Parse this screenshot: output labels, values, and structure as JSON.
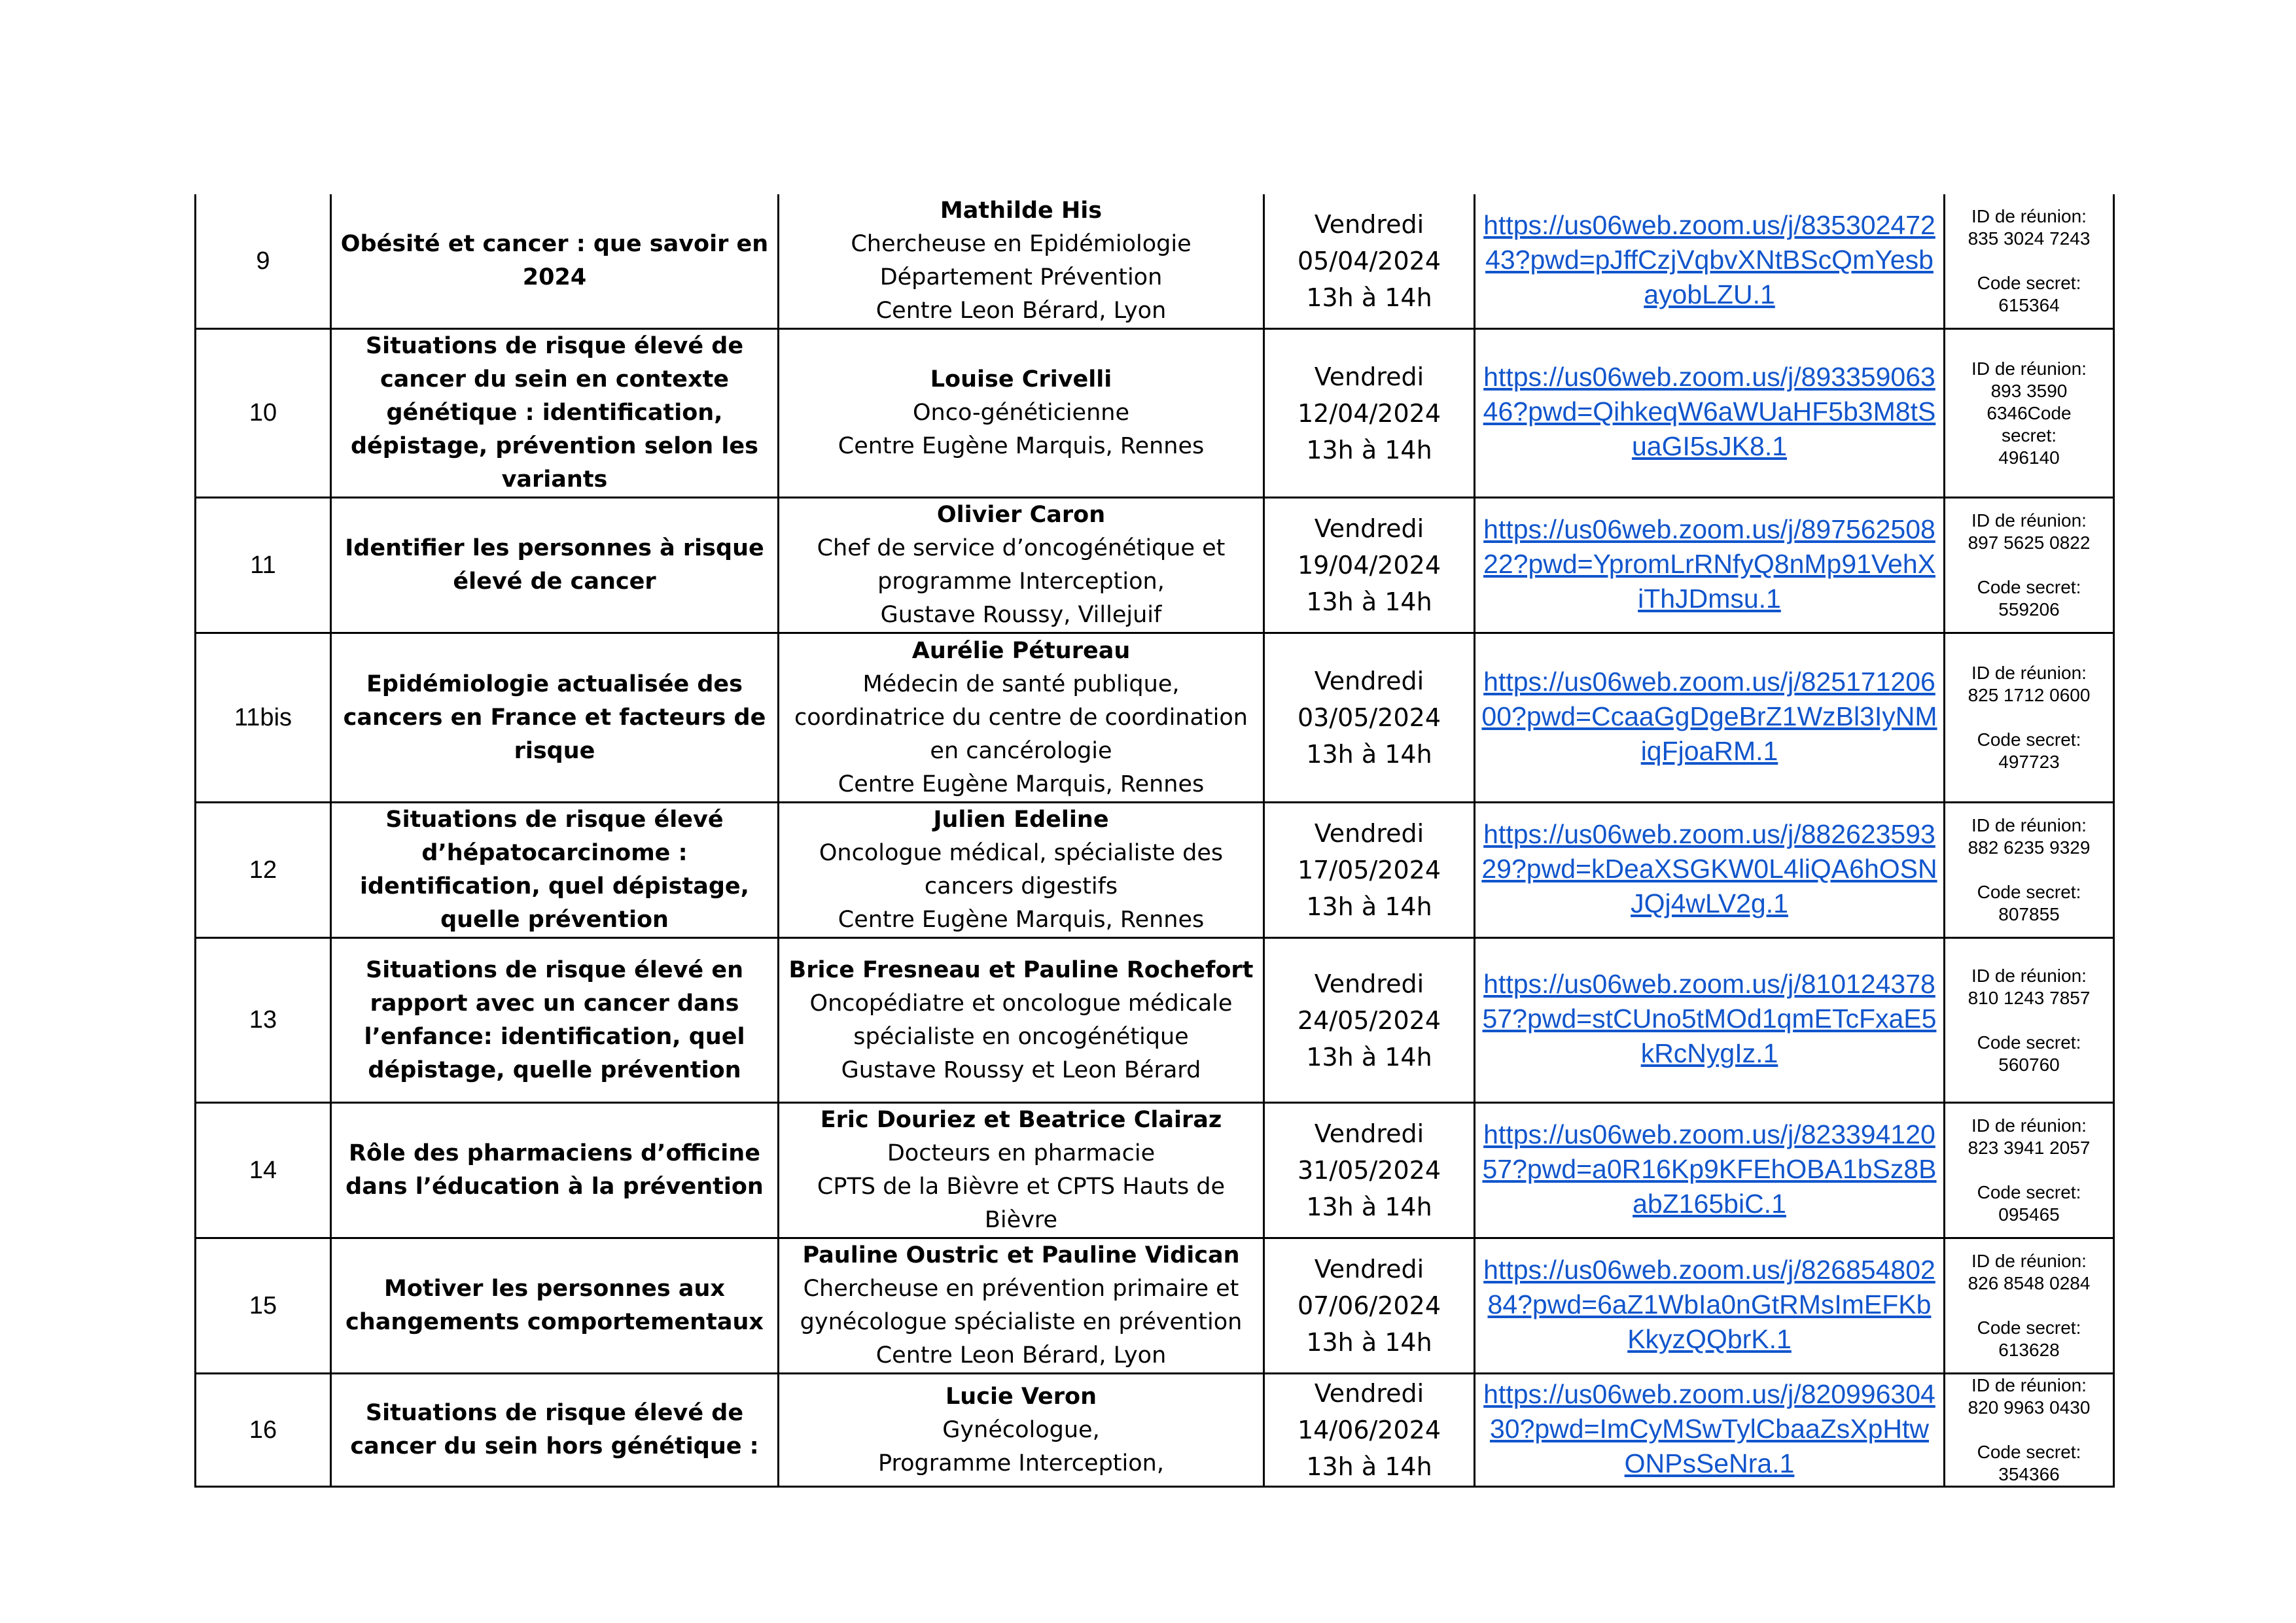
{
  "sessions": [
    {
      "num": "9",
      "title": "Obésité et cancer : que savoir en 2024",
      "speaker": "Mathilde His",
      "details": [
        "Chercheuse en Epidémiologie",
        "Département Prévention",
        "Centre Leon Bérard, Lyon"
      ],
      "day": "Vendredi",
      "date": "05/04/2024",
      "time": "13h à 14h",
      "link": "https://us06web.zoom.us/j/83530247243?pwd=pJffCzjVqbvXNtBScQmYesbayobLZU.1",
      "id_label": "ID de réunion:",
      "id": "835 3024 7243",
      "code_label": "Code secret:",
      "code": "615364"
    },
    {
      "num": "10",
      "title": "Situations de risque élevé de cancer du sein en contexte génétique : identification, dépistage, prévention selon les variants",
      "speaker": "Louise Crivelli",
      "details": [
        "Onco-généticienne",
        "Centre Eugène Marquis, Rennes"
      ],
      "day": "Vendredi",
      "date": "12/04/2024",
      "time": "13h à 14h",
      "link": "https://us06web.zoom.us/j/89335906346?pwd=QihkeqW6aWUaHF5b3M8tSuaGI5sJK8.1",
      "id_label": "ID de réunion:",
      "id": "893 3590 6346Code",
      "code_label": "secret:",
      "code": "496140"
    },
    {
      "num": "11",
      "title": "Identifier les personnes à risque élevé de cancer",
      "speaker": "Olivier Caron",
      "details": [
        "Chef de service d’oncogénétique et programme Interception,",
        "Gustave Roussy, Villejuif"
      ],
      "day": "Vendredi",
      "date": "19/04/2024",
      "time": "13h à 14h",
      "link": "https://us06web.zoom.us/j/89756250822?pwd=YpromLrRNfyQ8nMp91VehXiThJDmsu.1",
      "id_label": "ID de réunion:",
      "id": "897 5625 0822",
      "code_label": "Code secret:",
      "code": "559206"
    },
    {
      "num": "11bis",
      "title": "Epidémiologie actualisée des cancers en France et facteurs de risque",
      "speaker": "Aurélie Pétureau",
      "details": [
        "Médecin de santé publique, coordinatrice du centre de coordination en cancérologie",
        "Centre Eugène Marquis, Rennes"
      ],
      "day": "Vendredi",
      "date": "03/05/2024",
      "time": "13h à 14h",
      "link": "https://us06web.zoom.us/j/82517120600?pwd=CcaaGgDgeBrZ1WzBl3IyNMiqFjoaRM.1",
      "id_label": "ID de réunion:",
      "id": "825 1712 0600",
      "code_label": "Code secret:",
      "code": "497723"
    },
    {
      "num": "12",
      "title": "Situations de risque élevé d’hépatocarcinome : identification, quel dépistage, quelle prévention",
      "speaker": "Julien Edeline",
      "details": [
        "Oncologue médical, spécialiste des cancers digestifs",
        "Centre Eugène Marquis, Rennes"
      ],
      "day": "Vendredi",
      "date": "17/05/2024",
      "time": "13h à 14h",
      "link": "https://us06web.zoom.us/j/88262359329?pwd=kDeaXSGKW0L4liQA6hOSNJQj4wLV2g.1",
      "id_label": "ID de réunion:",
      "id": "882 6235 9329",
      "code_label": "Code secret:",
      "code": "807855"
    },
    {
      "num": "13",
      "title": "Situations de risque élevé en rapport avec un cancer dans l’enfance: identification, quel dépistage, quelle prévention",
      "speaker": "Brice Fresneau et Pauline Rochefort",
      "details": [
        "Oncopédiatre et oncologue médicale spécialiste en oncogénétique",
        "Gustave Roussy et Leon Bérard"
      ],
      "day": "Vendredi",
      "date": "24/05/2024",
      "time": "13h à 14h",
      "link": "https://us06web.zoom.us/j/81012437857?pwd=stCUno5tMOd1qmETcFxaE5kRcNygIz.1",
      "id_label": "ID de réunion:",
      "id": "810 1243 7857",
      "code_label": "Code secret:",
      "code": "560760"
    },
    {
      "num": "14",
      "title": "Rôle des pharmaciens d’officine dans l’éducation à la prévention",
      "speaker": "Eric Douriez et Beatrice Clairaz",
      "details": [
        "Docteurs en pharmacie",
        "CPTS de la Bièvre et CPTS Hauts de Bièvre"
      ],
      "day": "Vendredi",
      "date": "31/05/2024",
      "time": "13h à 14h",
      "link": "https://us06web.zoom.us/j/82339412057?pwd=a0R16Kp9KFEhOBA1bSz8BabZ165biC.1",
      "id_label": "ID de réunion:",
      "id": "823 3941 2057",
      "code_label": "Code secret:",
      "code": "095465"
    },
    {
      "num": "15",
      "title": "Motiver les personnes aux changements comportementaux",
      "speaker": "Pauline Oustric et Pauline Vidican",
      "details": [
        "Chercheuse en prévention primaire et gynécologue spécialiste en prévention",
        "Centre Leon Bérard, Lyon"
      ],
      "day": "Vendredi",
      "date": "07/06/2024",
      "time": "13h à 14h",
      "link": "https://us06web.zoom.us/j/82685480284?pwd=6aZ1WbIa0nGtRMsImEFKbKkyzQQbrK.1",
      "id_label": "ID de réunion:",
      "id": "826 8548 0284",
      "code_label": "Code secret:",
      "code": "613628"
    },
    {
      "num": "16",
      "title": "Situations de risque élevé de cancer du sein hors génétique :",
      "speaker": "Lucie Veron",
      "details": [
        "Gynécologue,",
        "Programme Interception,"
      ],
      "day": "Vendredi",
      "date": "14/06/2024",
      "time": "13h à 14h",
      "link": "https://us06web.zoom.us/j/82099630430?pwd=ImCyMSwTylCbaaZsXpHtwONPsSeNra.1",
      "id_label": "ID de réunion:",
      "id": "820 9963 0430",
      "code_label": "Code secret:",
      "code": "354366"
    }
  ]
}
